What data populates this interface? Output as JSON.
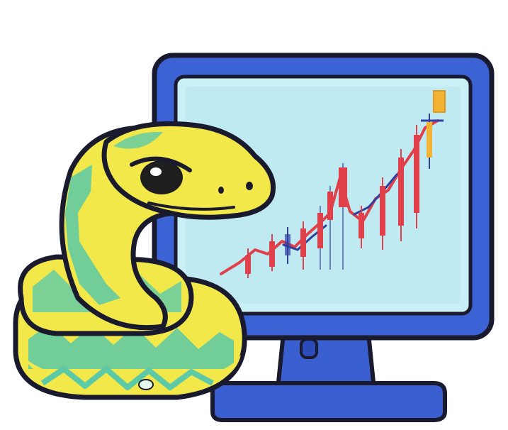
{
  "illustration": {
    "subject": "snake-with-stock-chart-monitor",
    "icons": [
      "snake-icon",
      "monitor-icon",
      "candlestick-chart-icon"
    ]
  },
  "colors": {
    "background": "#ffffff",
    "monitor_frame": "#3b63d6",
    "monitor_frame_dark": "#2a4bb8",
    "screen": "#c8f0f6",
    "screen_inner": "#bfeaf2",
    "stand": "#3a5fd0",
    "outline": "#1a1a2e",
    "snake_yellow": "#f2e84a",
    "snake_teal": "#5cc9a7",
    "snake_eye": "#1e1e1e",
    "candle_red": "#e0404a",
    "candle_blue": "#2f3fa0",
    "candle_orange": "#f2b233"
  }
}
